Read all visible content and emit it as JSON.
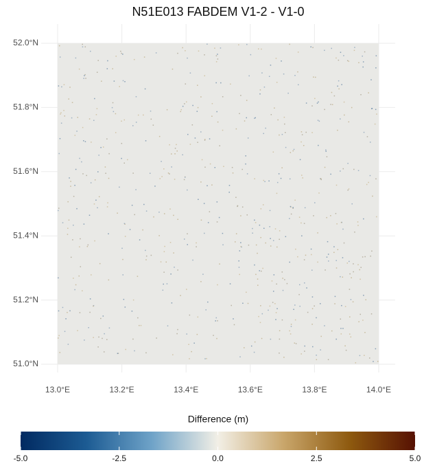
{
  "chart_data": {
    "type": "raster",
    "title": "N51E013 FABDEM V1-2 - V1-0",
    "xlim": [
      13.0,
      14.0
    ],
    "ylim": [
      51.0,
      52.0
    ],
    "xticks": [
      {
        "value": 13.0,
        "label": "13.0°E"
      },
      {
        "value": 13.2,
        "label": "13.2°E"
      },
      {
        "value": 13.4,
        "label": "13.4°E"
      },
      {
        "value": 13.6,
        "label": "13.6°E"
      },
      {
        "value": 13.8,
        "label": "13.8°E"
      },
      {
        "value": 14.0,
        "label": "14.0°E"
      }
    ],
    "yticks": [
      {
        "value": 51.0,
        "label": "51.0°N"
      },
      {
        "value": 51.2,
        "label": "51.2°N"
      },
      {
        "value": 51.4,
        "label": "51.4°N"
      },
      {
        "value": 51.6,
        "label": "51.6°N"
      },
      {
        "value": 51.8,
        "label": "51.8°N"
      },
      {
        "value": 52.0,
        "label": "52.0°N"
      }
    ],
    "raster_color": "#e9e9e6",
    "grid": true,
    "colorbar": {
      "label": "Difference (m)",
      "lim": [
        -5,
        5
      ],
      "ticks": [
        {
          "value": -5,
          "label": "-5.0"
        },
        -2.5,
        {
          "value": 0,
          "label": "0.0"
        },
        2.5,
        {
          "value": 5,
          "label": "5.0"
        }
      ],
      "colors": [
        "#012a61",
        "#1c5b93",
        "#6fa3c8",
        "#f2efe6",
        "#c9a66b",
        "#8e5a0f",
        "#561103"
      ]
    }
  }
}
